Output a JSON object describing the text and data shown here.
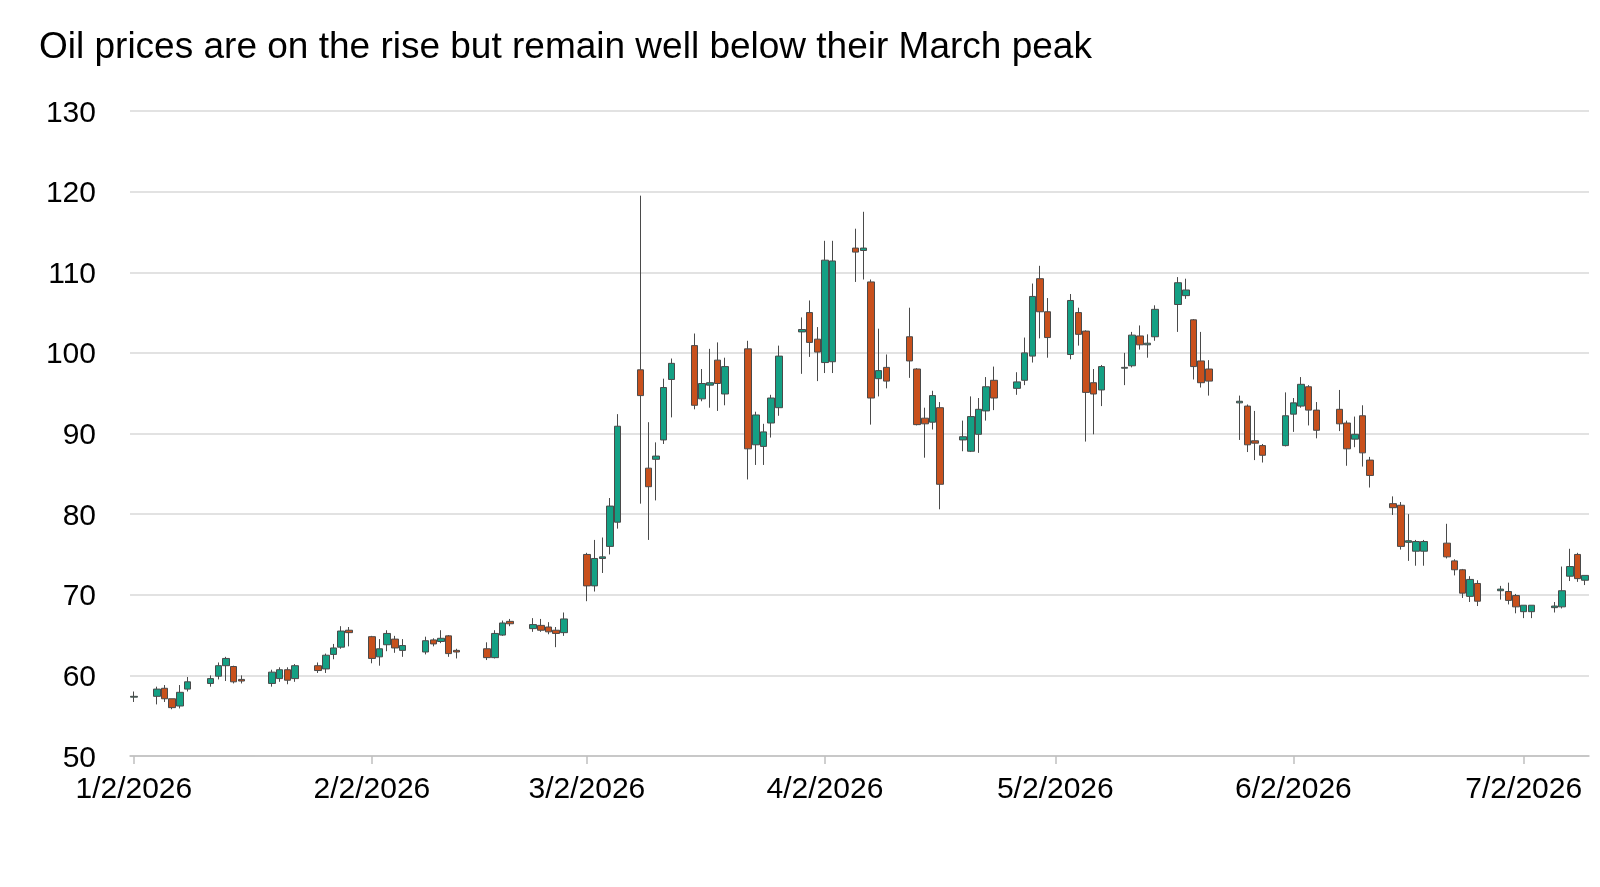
{
  "chart_data": {
    "type": "candlestick",
    "title": "Oil prices are on the rise but remain well below their March peak",
    "xlim": [
      "2026-01-01T12:00",
      "2026-07-10T12:00"
    ],
    "xticks": [
      {
        "value": "2026-01-02",
        "label": "1/2/2026"
      },
      {
        "value": "2026-02-02",
        "label": "2/2/2026"
      },
      {
        "value": "2026-03-02",
        "label": "3/2/2026"
      },
      {
        "value": "2026-04-02",
        "label": "4/2/2026"
      },
      {
        "value": "2026-05-02",
        "label": "5/2/2026"
      },
      {
        "value": "2026-06-02",
        "label": "6/2/2026"
      },
      {
        "value": "2026-07-02",
        "label": "7/2/2026"
      }
    ],
    "ylim": [
      50,
      130
    ],
    "yticks": [
      50,
      60,
      70,
      80,
      90,
      100,
      110,
      120,
      130
    ],
    "grid": "y",
    "x": [
      "2026-01-02",
      "2026-01-05",
      "2026-01-06",
      "2026-01-07",
      "2026-01-08",
      "2026-01-09",
      "2026-01-12",
      "2026-01-13",
      "2026-01-14",
      "2026-01-15",
      "2026-01-16",
      "2026-01-20",
      "2026-01-21",
      "2026-01-22",
      "2026-01-23",
      "2026-01-26",
      "2026-01-27",
      "2026-01-28",
      "2026-01-29",
      "2026-01-30",
      "2026-02-02",
      "2026-02-03",
      "2026-02-04",
      "2026-02-05",
      "2026-02-06",
      "2026-02-09",
      "2026-02-10",
      "2026-02-11",
      "2026-02-12",
      "2026-02-13",
      "2026-02-17",
      "2026-02-18",
      "2026-02-19",
      "2026-02-20",
      "2026-02-23",
      "2026-02-24",
      "2026-02-25",
      "2026-02-26",
      "2026-02-27",
      "2026-03-02",
      "2026-03-03",
      "2026-03-04",
      "2026-03-05",
      "2026-03-06",
      "2026-03-09",
      "2026-03-10",
      "2026-03-11",
      "2026-03-12",
      "2026-03-13",
      "2026-03-16",
      "2026-03-17",
      "2026-03-18",
      "2026-03-19",
      "2026-03-20",
      "2026-03-23",
      "2026-03-24",
      "2026-03-25",
      "2026-03-26",
      "2026-03-27",
      "2026-03-30",
      "2026-03-31",
      "2026-04-01",
      "2026-04-02",
      "2026-04-03",
      "2026-04-06",
      "2026-04-07",
      "2026-04-08",
      "2026-04-09",
      "2026-04-10",
      "2026-04-13",
      "2026-04-14",
      "2026-04-15",
      "2026-04-16",
      "2026-04-17",
      "2026-04-20",
      "2026-04-21",
      "2026-04-22",
      "2026-04-23",
      "2026-04-24",
      "2026-04-27",
      "2026-04-28",
      "2026-04-29",
      "2026-04-30",
      "2026-05-01",
      "2026-05-04",
      "2026-05-05",
      "2026-05-06",
      "2026-05-07",
      "2026-05-08",
      "2026-05-11",
      "2026-05-12",
      "2026-05-13",
      "2026-05-14",
      "2026-05-15",
      "2026-05-18",
      "2026-05-19",
      "2026-05-20",
      "2026-05-21",
      "2026-05-22",
      "2026-05-26",
      "2026-05-27",
      "2026-05-28",
      "2026-05-29",
      "2026-06-01",
      "2026-06-02",
      "2026-06-03",
      "2026-06-04",
      "2026-06-05",
      "2026-06-08",
      "2026-06-09",
      "2026-06-10",
      "2026-06-11",
      "2026-06-12",
      "2026-06-15",
      "2026-06-16",
      "2026-06-17",
      "2026-06-18",
      "2026-06-19",
      "2026-06-22",
      "2026-06-23",
      "2026-06-24",
      "2026-06-25",
      "2026-06-26",
      "2026-06-29",
      "2026-06-30",
      "2026-07-01",
      "2026-07-02",
      "2026-07-03",
      "2026-07-06",
      "2026-07-07",
      "2026-07-08",
      "2026-07-09",
      "2026-07-10"
    ],
    "ohlc": [
      [
        57.3,
        58.0,
        56.7,
        57.4
      ],
      [
        57.4,
        58.6,
        56.4,
        58.3
      ],
      [
        58.4,
        58.8,
        56.7,
        57.1
      ],
      [
        57.1,
        57.1,
        55.8,
        56.0
      ],
      [
        56.2,
        58.8,
        55.9,
        57.9
      ],
      [
        58.3,
        59.8,
        58.0,
        59.2
      ],
      [
        59.0,
        60.0,
        58.6,
        59.6
      ],
      [
        59.9,
        61.6,
        59.5,
        61.2
      ],
      [
        61.2,
        62.3,
        59.3,
        62.1
      ],
      [
        61.1,
        61.2,
        59.0,
        59.2
      ],
      [
        59.5,
        60.0,
        59.0,
        59.3
      ],
      [
        59.0,
        60.7,
        58.6,
        60.4
      ],
      [
        59.6,
        61.0,
        59.2,
        60.7
      ],
      [
        60.7,
        61.0,
        58.9,
        59.4
      ],
      [
        59.6,
        61.4,
        59.2,
        61.2
      ],
      [
        61.2,
        61.6,
        60.3,
        60.6
      ],
      [
        60.8,
        62.7,
        60.3,
        62.5
      ],
      [
        62.6,
        63.9,
        62.0,
        63.4
      ],
      [
        63.5,
        66.1,
        63.3,
        65.5
      ],
      [
        65.6,
        66.0,
        63.6,
        65.3
      ],
      [
        64.8,
        64.9,
        61.5,
        62.1
      ],
      [
        62.3,
        64.5,
        61.2,
        63.3
      ],
      [
        63.8,
        65.6,
        63.0,
        65.2
      ],
      [
        64.5,
        64.9,
        62.8,
        63.4
      ],
      [
        63.1,
        64.5,
        62.3,
        63.7
      ],
      [
        62.9,
        64.8,
        62.6,
        64.3
      ],
      [
        64.4,
        64.6,
        63.6,
        63.9
      ],
      [
        64.2,
        65.6,
        64.0,
        64.6
      ],
      [
        64.9,
        65.0,
        62.3,
        62.7
      ],
      [
        63.1,
        63.3,
        62.1,
        62.9
      ],
      [
        63.3,
        64.1,
        61.9,
        62.2
      ],
      [
        62.2,
        65.6,
        62.1,
        65.2
      ],
      [
        65.0,
        66.8,
        64.9,
        66.5
      ],
      [
        66.7,
        67.0,
        66.1,
        66.4
      ],
      [
        65.8,
        67.1,
        65.4,
        66.3
      ],
      [
        66.2,
        67.0,
        65.4,
        65.6
      ],
      [
        66.0,
        66.6,
        65.1,
        65.4
      ],
      [
        65.6,
        66.0,
        63.5,
        65.2
      ],
      [
        65.3,
        67.8,
        64.9,
        67.0
      ],
      [
        75.0,
        75.2,
        69.2,
        71.1
      ],
      [
        71.1,
        76.8,
        70.4,
        74.5
      ],
      [
        74.5,
        77.1,
        72.7,
        74.7
      ],
      [
        76.0,
        82.0,
        75.0,
        81.0
      ],
      [
        79.0,
        92.4,
        78.2,
        90.9
      ],
      [
        97.9,
        119.5,
        81.3,
        94.7
      ],
      [
        85.7,
        91.4,
        76.8,
        83.4
      ],
      [
        86.8,
        88.9,
        81.7,
        87.2
      ],
      [
        89.2,
        96.8,
        88.7,
        95.7
      ],
      [
        96.7,
        99.3,
        92.0,
        98.7
      ],
      [
        100.9,
        102.4,
        93.0,
        93.5
      ],
      [
        94.3,
        98.0,
        94.0,
        96.2
      ],
      [
        96.0,
        100.5,
        93.2,
        96.3
      ],
      [
        99.1,
        101.3,
        92.8,
        96.2
      ],
      [
        94.9,
        99.4,
        93.5,
        98.3
      ],
      [
        100.5,
        101.5,
        84.3,
        88.1
      ],
      [
        88.6,
        92.7,
        86.1,
        92.3
      ],
      [
        88.4,
        91.2,
        86.1,
        90.2
      ],
      [
        91.3,
        94.8,
        89.5,
        94.4
      ],
      [
        93.2,
        100.9,
        92.2,
        99.6
      ],
      [
        102.6,
        104.4,
        97.4,
        102.9
      ],
      [
        105.0,
        106.5,
        99.5,
        101.3
      ],
      [
        101.7,
        103.2,
        96.5,
        100.1
      ],
      [
        98.8,
        113.9,
        97.5,
        111.5
      ],
      [
        98.9,
        113.9,
        97.5,
        111.4
      ],
      [
        113.0,
        115.4,
        108.8,
        112.5
      ],
      [
        112.7,
        117.5,
        109.1,
        113.0
      ],
      [
        108.8,
        109.1,
        91.1,
        94.4
      ],
      [
        96.8,
        103.0,
        94.6,
        97.8
      ],
      [
        98.2,
        99.8,
        95.6,
        96.5
      ],
      [
        102.0,
        105.6,
        96.9,
        99.0
      ],
      [
        98.0,
        98.1,
        91.0,
        91.1
      ],
      [
        91.9,
        93.2,
        87.0,
        91.2
      ],
      [
        91.4,
        95.3,
        90.5,
        94.7
      ],
      [
        93.2,
        93.9,
        80.6,
        83.7
      ],
      [
        89.2,
        91.6,
        87.8,
        89.6
      ],
      [
        87.8,
        94.6,
        87.7,
        92.1
      ],
      [
        89.9,
        94.4,
        87.6,
        93.0
      ],
      [
        92.8,
        97.0,
        91.6,
        95.8
      ],
      [
        96.6,
        98.3,
        92.9,
        94.4
      ],
      [
        95.6,
        97.6,
        94.8,
        96.4
      ],
      [
        96.6,
        101.9,
        96.0,
        100.0
      ],
      [
        99.6,
        108.6,
        98.8,
        107.0
      ],
      [
        109.2,
        110.8,
        101.8,
        105.1
      ],
      [
        105.1,
        106.8,
        99.4,
        101.9
      ],
      [
        99.8,
        107.3,
        99.2,
        106.5
      ],
      [
        105.0,
        105.6,
        100.9,
        102.3
      ],
      [
        102.7,
        102.8,
        89.0,
        95.1
      ],
      [
        96.3,
        98.0,
        89.9,
        94.9
      ],
      [
        95.4,
        98.5,
        93.4,
        98.3
      ],
      [
        98.1,
        100.0,
        96.0,
        98.2
      ],
      [
        98.4,
        102.6,
        98.2,
        102.2
      ],
      [
        102.1,
        103.4,
        100.4,
        101.0
      ],
      [
        101.0,
        102.3,
        99.4,
        101.2
      ],
      [
        102.0,
        105.9,
        101.5,
        105.4
      ],
      [
        106.0,
        109.4,
        102.6,
        108.7
      ],
      [
        107.1,
        109.2,
        106.7,
        107.8
      ],
      [
        104.1,
        104.2,
        96.7,
        98.3
      ],
      [
        99.0,
        102.6,
        95.7,
        96.3
      ],
      [
        98.0,
        99.1,
        94.7,
        96.5
      ],
      [
        93.8,
        94.7,
        89.2,
        94.0
      ],
      [
        93.4,
        93.6,
        87.7,
        88.6
      ],
      [
        89.1,
        92.8,
        86.7,
        88.8
      ],
      [
        88.5,
        88.7,
        86.4,
        87.3
      ],
      [
        88.5,
        95.1,
        88.4,
        92.2
      ],
      [
        92.4,
        94.4,
        90.2,
        93.8
      ],
      [
        93.4,
        97.0,
        93.2,
        96.1
      ],
      [
        95.8,
        96.0,
        91.0,
        92.9
      ],
      [
        92.9,
        93.9,
        89.4,
        90.4
      ],
      [
        93.0,
        95.4,
        90.3,
        91.2
      ],
      [
        91.3,
        91.6,
        86.0,
        88.1
      ],
      [
        89.3,
        92.1,
        88.3,
        89.9
      ],
      [
        92.2,
        93.5,
        85.9,
        87.6
      ],
      [
        86.7,
        87.1,
        83.3,
        84.8
      ],
      [
        81.3,
        82.2,
        79.9,
        80.8
      ],
      [
        81.1,
        81.5,
        75.6,
        76.0
      ],
      [
        76.5,
        80.0,
        74.2,
        76.7
      ],
      [
        75.4,
        76.8,
        73.6,
        76.6
      ],
      [
        75.4,
        76.8,
        73.6,
        76.6
      ],
      [
        76.4,
        78.8,
        74.5,
        74.7
      ],
      [
        74.2,
        74.4,
        72.4,
        73.1
      ],
      [
        73.1,
        73.2,
        69.6,
        70.2
      ],
      [
        69.8,
        72.3,
        69.1,
        71.9
      ],
      [
        71.4,
        71.8,
        68.6,
        69.2
      ],
      [
        70.5,
        71.1,
        69.4,
        70.7
      ],
      [
        70.4,
        71.5,
        68.8,
        69.3
      ],
      [
        69.9,
        70.1,
        67.7,
        68.5
      ],
      [
        67.9,
        68.7,
        67.1,
        68.7
      ],
      [
        67.9,
        68.7,
        67.1,
        68.7
      ],
      [
        68.4,
        69.1,
        67.8,
        68.6
      ],
      [
        68.5,
        73.5,
        68.3,
        70.5
      ],
      [
        72.3,
        75.7,
        71.7,
        73.5
      ],
      [
        75.0,
        75.2,
        71.6,
        72.0
      ],
      [
        71.8,
        72.4,
        71.2,
        72.4
      ]
    ]
  }
}
